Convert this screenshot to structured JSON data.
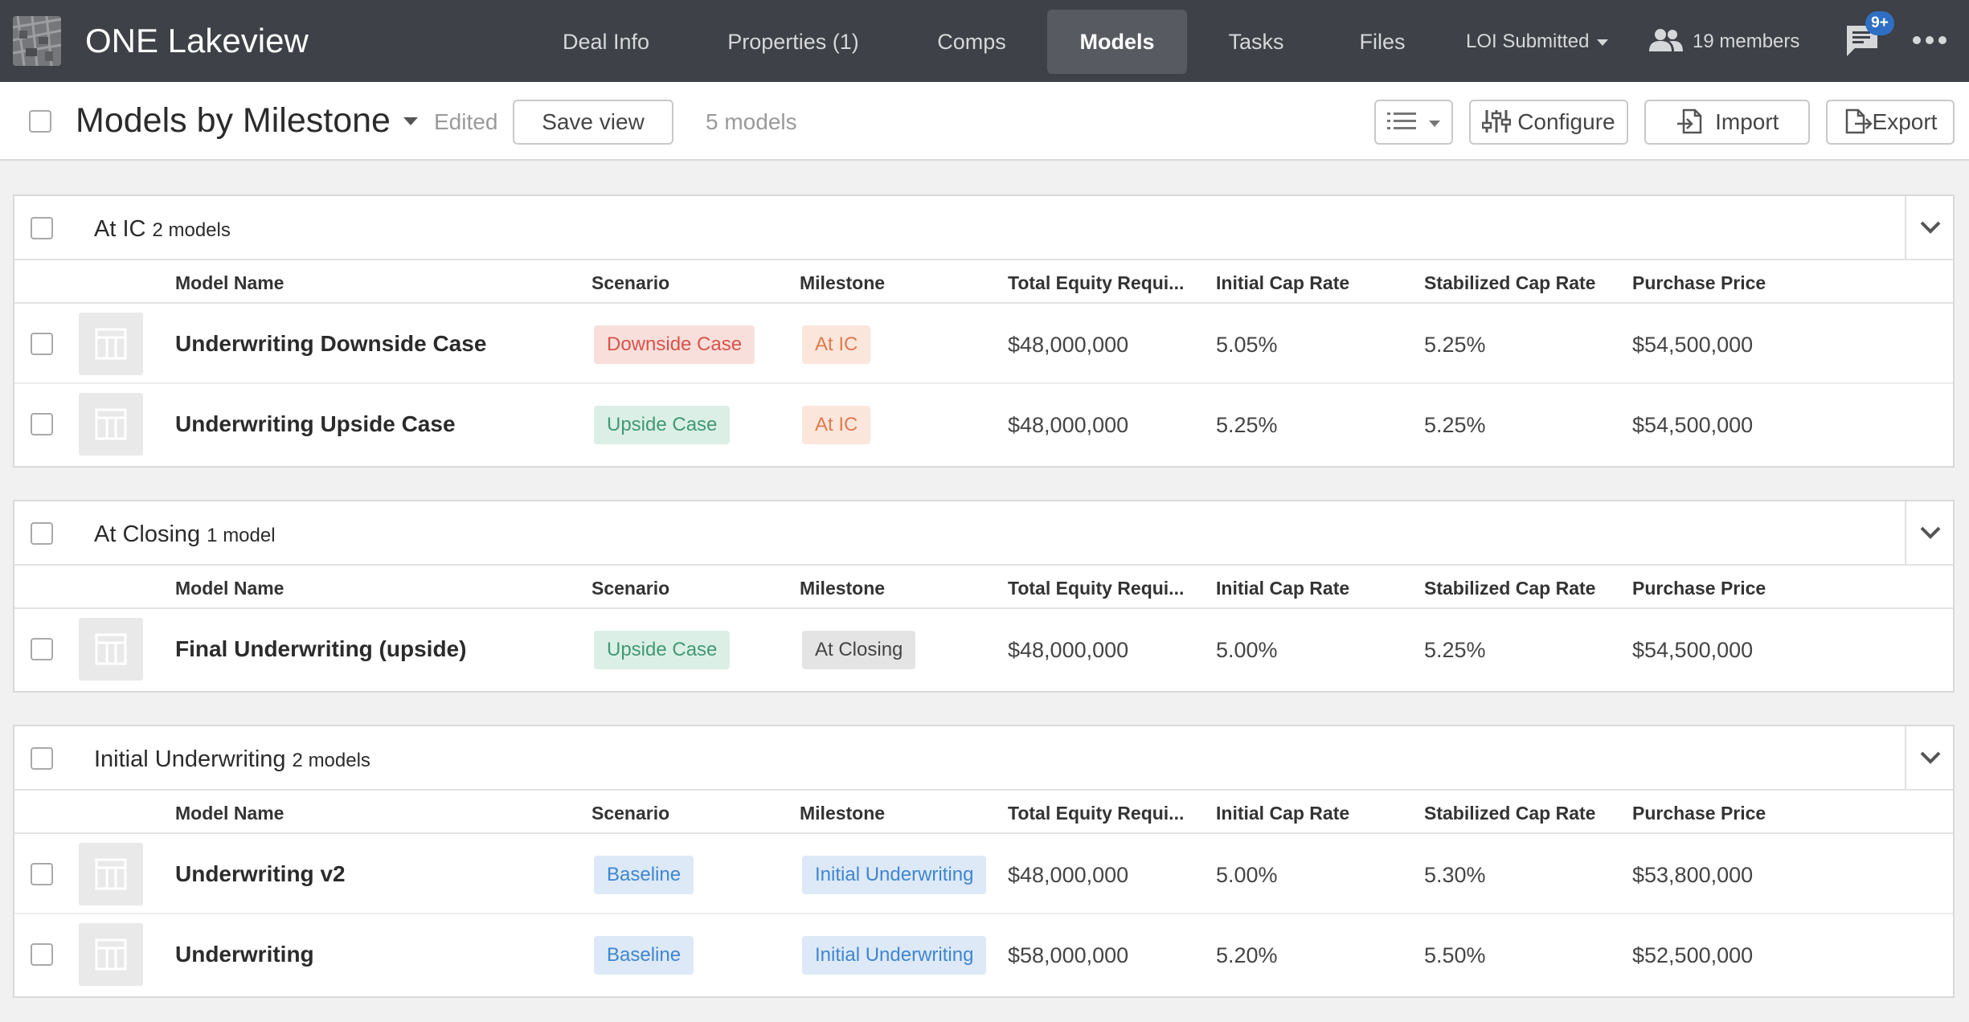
{
  "app": {
    "title": "ONE Lakeview"
  },
  "nav": {
    "tabs": [
      {
        "label": "Deal Info"
      },
      {
        "label": "Properties (1)"
      },
      {
        "label": "Comps"
      },
      {
        "label": "Models"
      },
      {
        "label": "Tasks"
      },
      {
        "label": "Files"
      }
    ],
    "active_tab": "Models",
    "status_dropdown": "LOI Submitted",
    "members": "19 members",
    "notifications_badge": "9+"
  },
  "toolbar": {
    "view_title": "Models by Milestone",
    "edited": "Edited",
    "save_view": "Save view",
    "count": "5 models",
    "configure": "Configure",
    "import": "Import",
    "export": "Export"
  },
  "columns": {
    "model_name": "Model Name",
    "scenario": "Scenario",
    "milestone": "Milestone",
    "total_equity": "Total Equity Requi...",
    "initial_cap": "Initial Cap Rate",
    "stabilized_cap": "Stabilized Cap Rate",
    "purchase_price": "Purchase Price"
  },
  "groups": [
    {
      "title": "At IC",
      "count": "2 models",
      "rows": [
        {
          "name": "Underwriting Downside Case",
          "scenario": "Downside Case",
          "milestone": "At IC",
          "equity": "$48,000,000",
          "initial_cap": "5.05%",
          "stabilized_cap": "5.25%",
          "price": "$54,500,000"
        },
        {
          "name": "Underwriting Upside Case",
          "scenario": "Upside Case",
          "milestone": "At IC",
          "equity": "$48,000,000",
          "initial_cap": "5.25%",
          "stabilized_cap": "5.25%",
          "price": "$54,500,000"
        }
      ]
    },
    {
      "title": "At Closing",
      "count": "1 model",
      "rows": [
        {
          "name": "Final Underwriting (upside)",
          "scenario": "Upside Case",
          "milestone": "At Closing",
          "equity": "$48,000,000",
          "initial_cap": "5.00%",
          "stabilized_cap": "5.25%",
          "price": "$54,500,000"
        }
      ]
    },
    {
      "title": "Initial Underwriting",
      "count": "2 models",
      "rows": [
        {
          "name": "Underwriting v2",
          "scenario": "Baseline",
          "milestone": "Initial Underwriting",
          "equity": "$48,000,000",
          "initial_cap": "5.00%",
          "stabilized_cap": "5.30%",
          "price": "$53,800,000"
        },
        {
          "name": "Underwriting",
          "scenario": "Baseline",
          "milestone": "Initial Underwriting",
          "equity": "$58,000,000",
          "initial_cap": "5.20%",
          "stabilized_cap": "5.50%",
          "price": "$52,500,000"
        }
      ]
    }
  ],
  "colors": {
    "nav_bg": "#3e4147",
    "active_tab_bg": "#575a60",
    "badge": "#2e6fc4",
    "downside_tag": "#d9534a",
    "upside_tag": "#3f9a72",
    "baseline_tag": "#3f86d0",
    "at_ic_tag": "#e07a4c"
  }
}
